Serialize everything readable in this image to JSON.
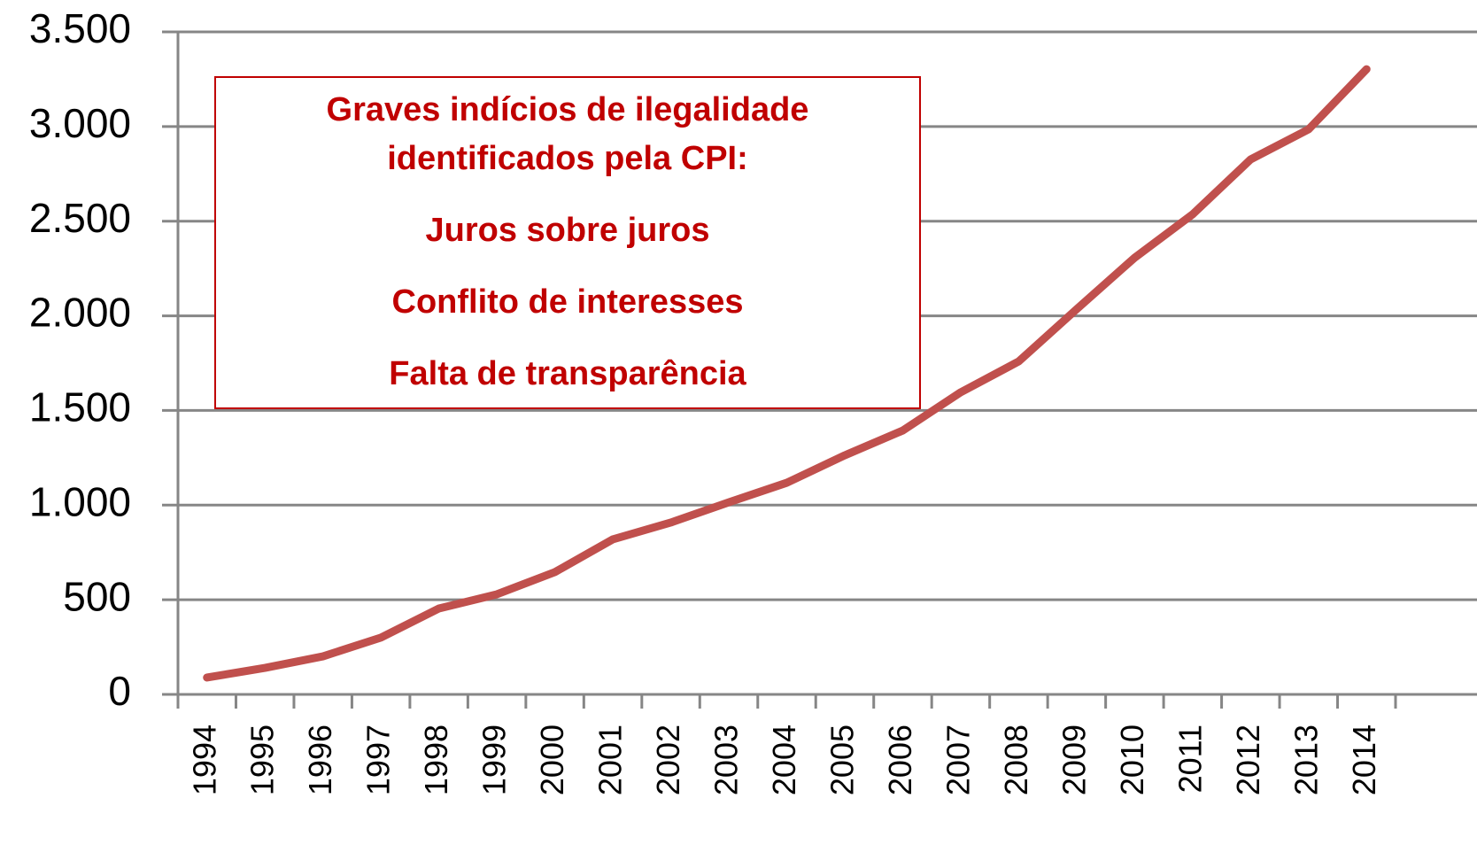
{
  "chart_data": {
    "type": "line",
    "categories": [
      "1994",
      "1995",
      "1996",
      "1997",
      "1998",
      "1999",
      "2000",
      "2001",
      "2002",
      "2003",
      "2004",
      "2005",
      "2006",
      "2007",
      "2008",
      "2009",
      "2010",
      "2011",
      "2012",
      "2013",
      "2014"
    ],
    "series": [
      {
        "color": "#c0504d",
        "values": [
          89,
          140,
          201,
          300,
          454,
          529,
          646,
          819,
          908,
          1015,
          1118,
          1263,
          1394,
          1596,
          1759,
          2035,
          2307,
          2536,
          2826,
          2985,
          3303
        ]
      }
    ],
    "ylim": [
      0,
      3500
    ],
    "yticks": [
      0,
      500,
      {
        "value": 1000,
        "label": "1.000"
      },
      {
        "value": 1500,
        "label": "1.500"
      },
      {
        "value": 2000,
        "label": "2.000"
      },
      {
        "value": 2500,
        "label": "2.500"
      },
      {
        "value": 3000,
        "label": "3.000"
      },
      {
        "value": 3500,
        "label": "3.500"
      }
    ],
    "grid": true,
    "annotation": [
      "Graves indícios de ilegalidade",
      "identificados pela CPI:",
      "Juros sobre juros",
      "Conflito de interesses",
      "Falta de transparência"
    ],
    "annotation_color": "#c00000"
  }
}
